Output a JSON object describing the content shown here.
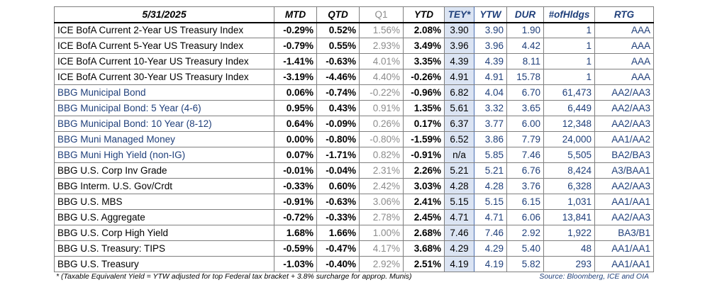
{
  "header": {
    "date": "5/31/2025",
    "mtd": "MTD",
    "qtd": "QTD",
    "q1": "Q1",
    "ytd": "YTD",
    "tey": "TEY*",
    "ytw": "YTW",
    "dur": "DUR",
    "holdings": "#ofHldgs",
    "rtg": "RTG"
  },
  "rows": [
    {
      "name": "ICE BofA Current 2-Year US Treasury Index",
      "blue": false,
      "mtd": "-0.29%",
      "qtd": "0.52%",
      "q1": "1.56%",
      "ytd": "2.08%",
      "tey": "3.90",
      "ytw": "3.90",
      "dur": "1.90",
      "holdings": "1",
      "rtg": "AAA"
    },
    {
      "name": "ICE BofA Current 5-Year US Treasury Index",
      "blue": false,
      "mtd": "-0.79%",
      "qtd": "0.55%",
      "q1": "2.93%",
      "ytd": "3.49%",
      "tey": "3.96",
      "ytw": "3.96",
      "dur": "4.42",
      "holdings": "1",
      "rtg": "AAA"
    },
    {
      "name": "ICE BofA Current 10-Year US Treasury Index",
      "blue": false,
      "mtd": "-1.41%",
      "qtd": "-0.63%",
      "q1": "4.01%",
      "ytd": "3.35%",
      "tey": "4.39",
      "ytw": "4.39",
      "dur": "8.11",
      "holdings": "1",
      "rtg": "AAA"
    },
    {
      "name": "ICE BofA Current 30-Year US Treasury Index",
      "blue": false,
      "mtd": "-3.19%",
      "qtd": "-4.46%",
      "q1": "4.40%",
      "ytd": "-0.26%",
      "tey": "4.91",
      "ytw": "4.91",
      "dur": "15.78",
      "holdings": "1",
      "rtg": "AAA"
    },
    {
      "name": "BBG Municipal Bond",
      "blue": true,
      "mtd": "0.06%",
      "qtd": "-0.74%",
      "q1": "-0.22%",
      "ytd": "-0.96%",
      "tey": "6.82",
      "ytw": "4.04",
      "dur": "6.70",
      "holdings": "61,473",
      "rtg": "AA2/AA3"
    },
    {
      "name": "BBG Municipal Bond: 5 Year (4-6)",
      "blue": true,
      "mtd": "0.95%",
      "qtd": "0.43%",
      "q1": "0.91%",
      "ytd": "1.35%",
      "tey": "5.61",
      "ytw": "3.32",
      "dur": "3.65",
      "holdings": "6,449",
      "rtg": "AA2/AA3"
    },
    {
      "name": "BBG Municipal Bond: 10 Year (8-12)",
      "blue": true,
      "mtd": "0.64%",
      "qtd": "-0.09%",
      "q1": "0.26%",
      "ytd": "0.17%",
      "tey": "6.37",
      "ytw": "3.77",
      "dur": "6.00",
      "holdings": "12,348",
      "rtg": "AA2/AA3"
    },
    {
      "name": "BBG Muni Managed Money",
      "blue": true,
      "mtd": "0.00%",
      "qtd": "-0.80%",
      "q1": "-0.80%",
      "ytd": "-1.59%",
      "tey": "6.52",
      "ytw": "3.86",
      "dur": "7.79",
      "holdings": "24,000",
      "rtg": "AA1/AA2"
    },
    {
      "name": "BBG Muni High Yield (non-IG)",
      "blue": true,
      "mtd": "0.07%",
      "qtd": "-1.71%",
      "q1": "0.82%",
      "ytd": "-0.91%",
      "tey": "n/a",
      "ytw": "5.85",
      "dur": "7.46",
      "holdings": "5,505",
      "rtg": "BA2/BA3"
    },
    {
      "name": "BBG U.S. Corp Inv Grade",
      "blue": false,
      "mtd": "-0.01%",
      "qtd": "-0.04%",
      "q1": "2.31%",
      "ytd": "2.26%",
      "tey": "5.21",
      "ytw": "5.21",
      "dur": "6.76",
      "holdings": "8,424",
      "rtg": "A3/BAA1"
    },
    {
      "name": "BBG Interm. U.S. Gov/Crdt",
      "blue": false,
      "mtd": "-0.33%",
      "qtd": "0.60%",
      "q1": "2.42%",
      "ytd": "3.03%",
      "tey": "4.28",
      "ytw": "4.28",
      "dur": "3.76",
      "holdings": "6,328",
      "rtg": "AA2/AA3"
    },
    {
      "name": "BBG U.S. MBS",
      "blue": false,
      "mtd": "-0.91%",
      "qtd": "-0.63%",
      "q1": "3.06%",
      "ytd": "2.41%",
      "tey": "5.15",
      "ytw": "5.15",
      "dur": "6.15",
      "holdings": "1,031",
      "rtg": "AA1/AA1"
    },
    {
      "name": "BBG U.S. Aggregate",
      "blue": false,
      "mtd": "-0.72%",
      "qtd": "-0.33%",
      "q1": "2.78%",
      "ytd": "2.45%",
      "tey": "4.71",
      "ytw": "4.71",
      "dur": "6.06",
      "holdings": "13,841",
      "rtg": "AA2/AA3"
    },
    {
      "name": "BBG U.S. Corp High Yield",
      "blue": false,
      "mtd": "1.68%",
      "qtd": "1.66%",
      "q1": "1.00%",
      "ytd": "2.68%",
      "tey": "7.46",
      "ytw": "7.46",
      "dur": "2.92",
      "holdings": "1,922",
      "rtg": "BA3/B1"
    },
    {
      "name": "BBG U.S. Treasury: TIPS",
      "blue": false,
      "mtd": "-0.59%",
      "qtd": "-0.47%",
      "q1": "4.17%",
      "ytd": "3.68%",
      "tey": "4.29",
      "ytw": "4.29",
      "dur": "5.40",
      "holdings": "48",
      "rtg": "AA1/AA1"
    },
    {
      "name": "BBG U.S. Treasury",
      "blue": false,
      "mtd": "-1.03%",
      "qtd": "-0.40%",
      "q1": "2.92%",
      "ytd": "2.51%",
      "tey": "4.19",
      "ytw": "4.19",
      "dur": "5.82",
      "holdings": "293",
      "rtg": "AA1/AA1"
    }
  ],
  "footer": {
    "note": "* (Taxable Equivalent Yield = YTW adjusted for top Federal tax bracket + 3.8% surcharge for approp. Munis)",
    "source": "Source: Bloomberg, ICE and OIA"
  }
}
